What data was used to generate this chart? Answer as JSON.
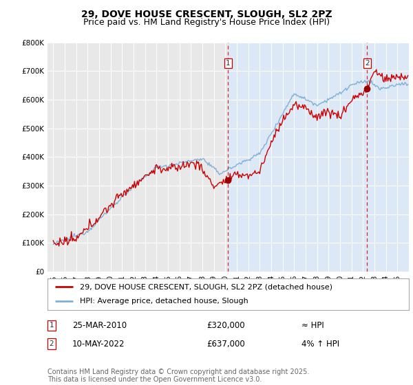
{
  "title": "29, DOVE HOUSE CRESCENT, SLOUGH, SL2 2PZ",
  "subtitle": "Price paid vs. HM Land Registry's House Price Index (HPI)",
  "background_color": "#ffffff",
  "plot_bg_color": "#dce8f5",
  "plot_bg_left_color": "#e8e8e8",
  "ylabel_values": [
    "£0",
    "£100K",
    "£200K",
    "£300K",
    "£400K",
    "£500K",
    "£600K",
    "£700K",
    "£800K"
  ],
  "ylim": [
    0,
    800000
  ],
  "xlim_start": 1995,
  "xlim_end": 2026,
  "xtick_years": [
    1995,
    1996,
    1997,
    1998,
    1999,
    2000,
    2001,
    2002,
    2003,
    2004,
    2005,
    2006,
    2007,
    2008,
    2009,
    2010,
    2011,
    2012,
    2013,
    2014,
    2015,
    2016,
    2017,
    2018,
    2019,
    2020,
    2021,
    2022,
    2023,
    2024,
    2025
  ],
  "sale1_x": 2010.23,
  "sale1_y": 320000,
  "sale2_x": 2022.37,
  "sale2_y": 637000,
  "hpi_line_color": "#7fb0d8",
  "price_line_color": "#cc0000",
  "legend_entry1": "29, DOVE HOUSE CRESCENT, SLOUGH, SL2 2PZ (detached house)",
  "legend_entry2": "HPI: Average price, detached house, Slough",
  "annotation1_label": "1",
  "annotation1_date": "25-MAR-2010",
  "annotation1_price": "£320,000",
  "annotation1_hpi": "≈ HPI",
  "annotation2_label": "2",
  "annotation2_date": "10-MAY-2022",
  "annotation2_price": "£637,000",
  "annotation2_hpi": "4% ↑ HPI",
  "footer": "Contains HM Land Registry data © Crown copyright and database right 2025.\nThis data is licensed under the Open Government Licence v3.0.",
  "title_fontsize": 10,
  "subtitle_fontsize": 9,
  "tick_fontsize": 7.5,
  "legend_fontsize": 8,
  "footer_fontsize": 7
}
